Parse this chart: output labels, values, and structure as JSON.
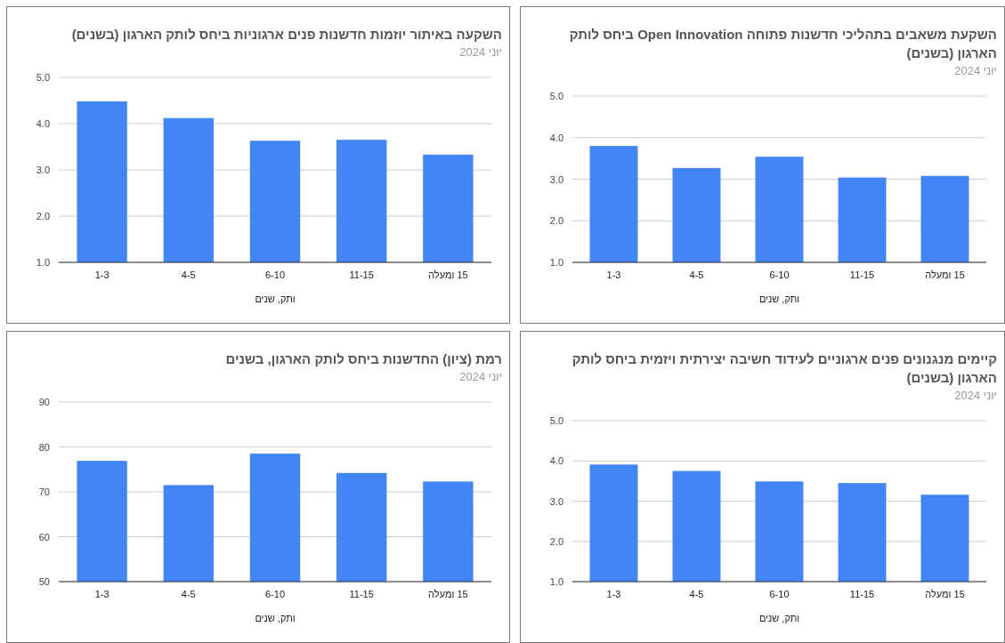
{
  "chart_data": [
    {
      "type": "bar",
      "title": "השקעה באיתור יוזמות חדשנות פנים ארגוניות ביחס לותק הארגון (בשנים)",
      "subtitle": "יוני 2024",
      "xlabel": "ותק, שנים",
      "categories": [
        "1-3",
        "4-5",
        "6-10",
        "11-15",
        "15 ומעלה"
      ],
      "values": [
        4.48,
        4.12,
        3.63,
        3.65,
        3.33
      ],
      "color": "#4285f4",
      "ylim": [
        1,
        5
      ],
      "yticks": [
        {
          "value": 1,
          "label": "1.0"
        },
        {
          "value": 2,
          "label": "2.0"
        },
        {
          "value": 3,
          "label": "3.0"
        },
        {
          "value": 4,
          "label": "4.0"
        },
        {
          "value": 5,
          "label": "5.0"
        }
      ],
      "grid": "y"
    },
    {
      "type": "bar",
      "title": "השקעת משאבים בתהליכי חדשנות פתוחה Open Innovation ביחס לותק הארגון (בשנים)",
      "subtitle": "יוני 2024",
      "xlabel": "ותק, שנים",
      "categories": [
        "1-3",
        "4-5",
        "6-10",
        "11-15",
        "15 ומעלה"
      ],
      "values": [
        3.8,
        3.27,
        3.54,
        3.04,
        3.08
      ],
      "color": "#4285f4",
      "ylim": [
        1,
        5
      ],
      "yticks": [
        {
          "value": 1,
          "label": "1.0"
        },
        {
          "value": 2,
          "label": "2.0"
        },
        {
          "value": 3,
          "label": "3.0"
        },
        {
          "value": 4,
          "label": "4.0"
        },
        {
          "value": 5,
          "label": "5.0"
        }
      ],
      "grid": "y"
    },
    {
      "type": "bar",
      "title": "רמת (ציון) החדשנות ביחס לותק הארגון, בשנים",
      "subtitle": "יוני 2024",
      "xlabel": "ותק, שנים",
      "categories": [
        "1-3",
        "4-5",
        "6-10",
        "11-15",
        "15 ומעלה"
      ],
      "values": [
        76.9,
        71.5,
        78.5,
        74.2,
        72.3
      ],
      "color": "#4285f4",
      "ylim": [
        50,
        90
      ],
      "yticks": [
        50,
        60,
        70,
        80,
        90
      ],
      "grid": "y"
    },
    {
      "type": "bar",
      "title": "קיימים מנגנונים פנים ארגוניים לעידוד חשיבה יצירתית ויזמית ביחס לותק הארגון (בשנים)",
      "subtitle": "יוני 2024",
      "xlabel": "ותק, שנים",
      "categories": [
        "1-3",
        "4-5",
        "6-10",
        "11-15",
        "15 ומעלה"
      ],
      "values": [
        3.91,
        3.75,
        3.49,
        3.45,
        3.16
      ],
      "color": "#4285f4",
      "ylim": [
        1,
        5
      ],
      "yticks": [
        {
          "value": 1,
          "label": "1.0"
        },
        {
          "value": 2,
          "label": "2.0"
        },
        {
          "value": 3,
          "label": "3.0"
        },
        {
          "value": 4,
          "label": "4.0"
        },
        {
          "value": 5,
          "label": "5.0"
        }
      ],
      "grid": "y"
    }
  ]
}
